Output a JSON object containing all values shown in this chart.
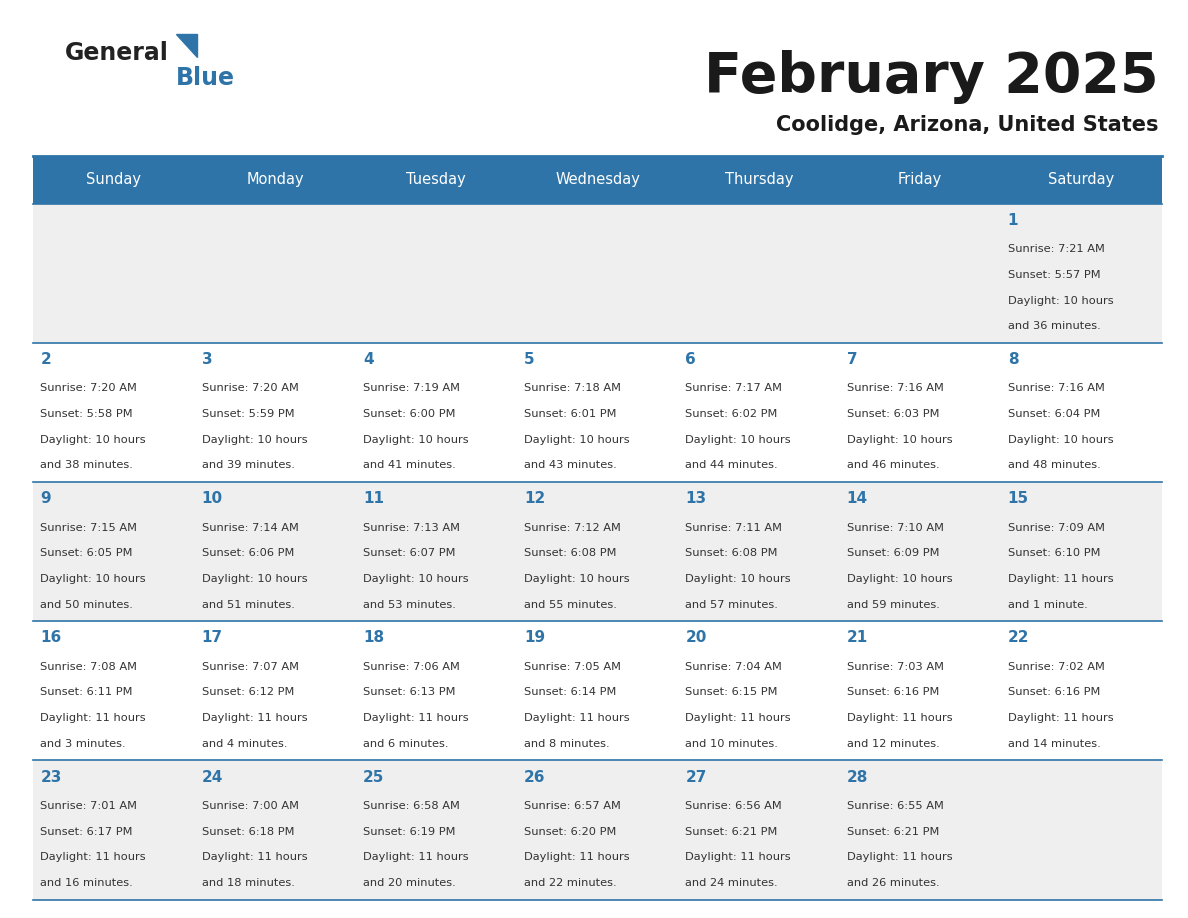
{
  "title": "February 2025",
  "subtitle": "Coolidge, Arizona, United States",
  "header_bg": "#2E74A8",
  "header_text_color": "#FFFFFF",
  "cell_bg_odd": "#EFEFEF",
  "cell_bg_even": "#FFFFFF",
  "border_color": "#2E74A8",
  "day_names": [
    "Sunday",
    "Monday",
    "Tuesday",
    "Wednesday",
    "Thursday",
    "Friday",
    "Saturday"
  ],
  "title_color": "#1a1a1a",
  "subtitle_color": "#1a1a1a",
  "number_color": "#2E74A8",
  "info_color": "#333333",
  "calendar": [
    [
      null,
      null,
      null,
      null,
      null,
      null,
      {
        "day": "1",
        "sunrise": "7:21 AM",
        "sunset": "5:57 PM",
        "daylight_line1": "Daylight: 10 hours",
        "daylight_line2": "and 36 minutes."
      }
    ],
    [
      {
        "day": "2",
        "sunrise": "7:20 AM",
        "sunset": "5:58 PM",
        "daylight_line1": "Daylight: 10 hours",
        "daylight_line2": "and 38 minutes."
      },
      {
        "day": "3",
        "sunrise": "7:20 AM",
        "sunset": "5:59 PM",
        "daylight_line1": "Daylight: 10 hours",
        "daylight_line2": "and 39 minutes."
      },
      {
        "day": "4",
        "sunrise": "7:19 AM",
        "sunset": "6:00 PM",
        "daylight_line1": "Daylight: 10 hours",
        "daylight_line2": "and 41 minutes."
      },
      {
        "day": "5",
        "sunrise": "7:18 AM",
        "sunset": "6:01 PM",
        "daylight_line1": "Daylight: 10 hours",
        "daylight_line2": "and 43 minutes."
      },
      {
        "day": "6",
        "sunrise": "7:17 AM",
        "sunset": "6:02 PM",
        "daylight_line1": "Daylight: 10 hours",
        "daylight_line2": "and 44 minutes."
      },
      {
        "day": "7",
        "sunrise": "7:16 AM",
        "sunset": "6:03 PM",
        "daylight_line1": "Daylight: 10 hours",
        "daylight_line2": "and 46 minutes."
      },
      {
        "day": "8",
        "sunrise": "7:16 AM",
        "sunset": "6:04 PM",
        "daylight_line1": "Daylight: 10 hours",
        "daylight_line2": "and 48 minutes."
      }
    ],
    [
      {
        "day": "9",
        "sunrise": "7:15 AM",
        "sunset": "6:05 PM",
        "daylight_line1": "Daylight: 10 hours",
        "daylight_line2": "and 50 minutes."
      },
      {
        "day": "10",
        "sunrise": "7:14 AM",
        "sunset": "6:06 PM",
        "daylight_line1": "Daylight: 10 hours",
        "daylight_line2": "and 51 minutes."
      },
      {
        "day": "11",
        "sunrise": "7:13 AM",
        "sunset": "6:07 PM",
        "daylight_line1": "Daylight: 10 hours",
        "daylight_line2": "and 53 minutes."
      },
      {
        "day": "12",
        "sunrise": "7:12 AM",
        "sunset": "6:08 PM",
        "daylight_line1": "Daylight: 10 hours",
        "daylight_line2": "and 55 minutes."
      },
      {
        "day": "13",
        "sunrise": "7:11 AM",
        "sunset": "6:08 PM",
        "daylight_line1": "Daylight: 10 hours",
        "daylight_line2": "and 57 minutes."
      },
      {
        "day": "14",
        "sunrise": "7:10 AM",
        "sunset": "6:09 PM",
        "daylight_line1": "Daylight: 10 hours",
        "daylight_line2": "and 59 minutes."
      },
      {
        "day": "15",
        "sunrise": "7:09 AM",
        "sunset": "6:10 PM",
        "daylight_line1": "Daylight: 11 hours",
        "daylight_line2": "and 1 minute."
      }
    ],
    [
      {
        "day": "16",
        "sunrise": "7:08 AM",
        "sunset": "6:11 PM",
        "daylight_line1": "Daylight: 11 hours",
        "daylight_line2": "and 3 minutes."
      },
      {
        "day": "17",
        "sunrise": "7:07 AM",
        "sunset": "6:12 PM",
        "daylight_line1": "Daylight: 11 hours",
        "daylight_line2": "and 4 minutes."
      },
      {
        "day": "18",
        "sunrise": "7:06 AM",
        "sunset": "6:13 PM",
        "daylight_line1": "Daylight: 11 hours",
        "daylight_line2": "and 6 minutes."
      },
      {
        "day": "19",
        "sunrise": "7:05 AM",
        "sunset": "6:14 PM",
        "daylight_line1": "Daylight: 11 hours",
        "daylight_line2": "and 8 minutes."
      },
      {
        "day": "20",
        "sunrise": "7:04 AM",
        "sunset": "6:15 PM",
        "daylight_line1": "Daylight: 11 hours",
        "daylight_line2": "and 10 minutes."
      },
      {
        "day": "21",
        "sunrise": "7:03 AM",
        "sunset": "6:16 PM",
        "daylight_line1": "Daylight: 11 hours",
        "daylight_line2": "and 12 minutes."
      },
      {
        "day": "22",
        "sunrise": "7:02 AM",
        "sunset": "6:16 PM",
        "daylight_line1": "Daylight: 11 hours",
        "daylight_line2": "and 14 minutes."
      }
    ],
    [
      {
        "day": "23",
        "sunrise": "7:01 AM",
        "sunset": "6:17 PM",
        "daylight_line1": "Daylight: 11 hours",
        "daylight_line2": "and 16 minutes."
      },
      {
        "day": "24",
        "sunrise": "7:00 AM",
        "sunset": "6:18 PM",
        "daylight_line1": "Daylight: 11 hours",
        "daylight_line2": "and 18 minutes."
      },
      {
        "day": "25",
        "sunrise": "6:58 AM",
        "sunset": "6:19 PM",
        "daylight_line1": "Daylight: 11 hours",
        "daylight_line2": "and 20 minutes."
      },
      {
        "day": "26",
        "sunrise": "6:57 AM",
        "sunset": "6:20 PM",
        "daylight_line1": "Daylight: 11 hours",
        "daylight_line2": "and 22 minutes."
      },
      {
        "day": "27",
        "sunrise": "6:56 AM",
        "sunset": "6:21 PM",
        "daylight_line1": "Daylight: 11 hours",
        "daylight_line2": "and 24 minutes."
      },
      {
        "day": "28",
        "sunrise": "6:55 AM",
        "sunset": "6:21 PM",
        "daylight_line1": "Daylight: 11 hours",
        "daylight_line2": "and 26 minutes."
      },
      null
    ]
  ],
  "figsize": [
    11.88,
    9.18
  ],
  "dpi": 100
}
